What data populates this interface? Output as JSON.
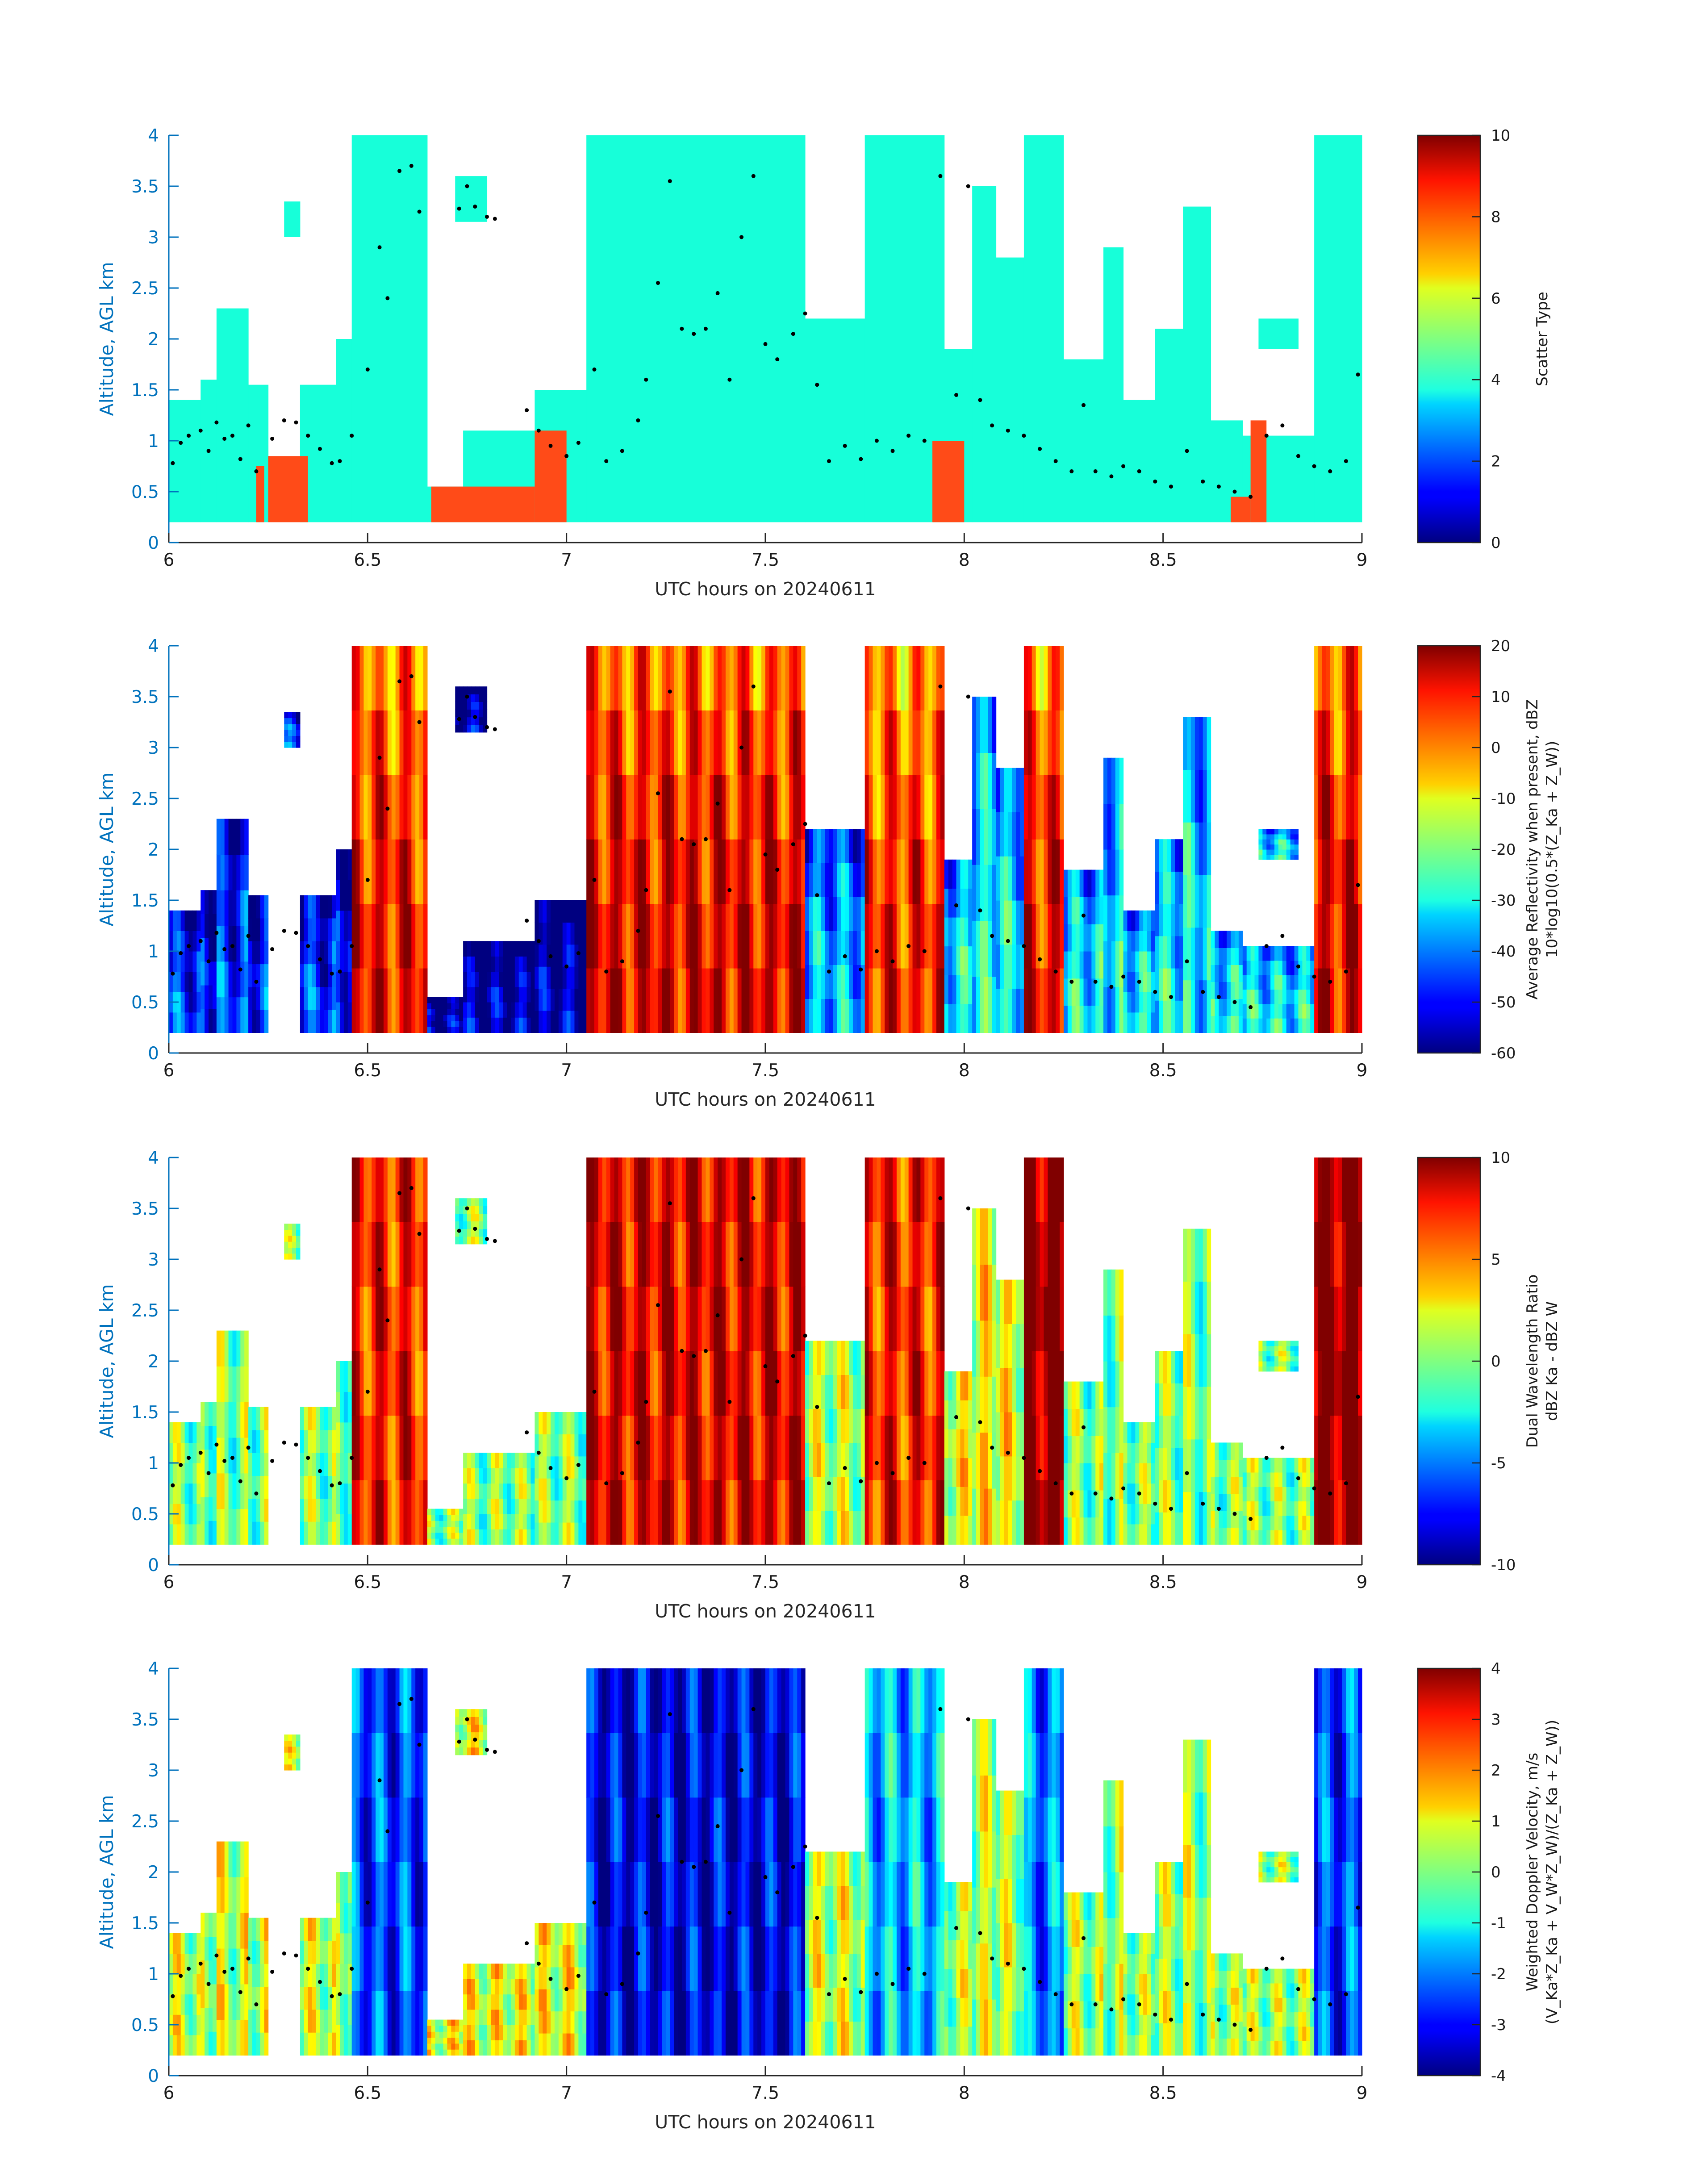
{
  "colors": {
    "ylabel": "#0072bd",
    "axis": "#262626",
    "marker": "#000000",
    "scatter_low": "#ff4b18",
    "scatter_high": "#17ffd9"
  },
  "chart_data": [
    {
      "type": "heatmap",
      "colormap": "jet",
      "xlabel": "UTC hours on 20240611",
      "ylabel": "Altitude, AGL km",
      "xlim": [
        6,
        9
      ],
      "ylim": [
        0,
        4
      ],
      "x_ticks": [
        "6",
        "6.5",
        "7",
        "7.5",
        "8",
        "8.5",
        "9"
      ],
      "y_ticks": [
        "0",
        "0.5",
        "1",
        "1.5",
        "2",
        "2.5",
        "3",
        "3.5",
        "4"
      ],
      "colorbar": {
        "label": [
          "Scatter Type"
        ],
        "range": [
          0,
          10
        ],
        "ticks": [
          "0",
          "2",
          "4",
          "6",
          "8",
          "10"
        ]
      },
      "field": "scatter_type"
    },
    {
      "type": "heatmap",
      "colormap": "jet",
      "xlabel": "UTC hours on 20240611",
      "ylabel": "Altitude, AGL km",
      "xlim": [
        6,
        9
      ],
      "ylim": [
        0,
        4
      ],
      "x_ticks": [
        "6",
        "6.5",
        "7",
        "7.5",
        "8",
        "8.5",
        "9"
      ],
      "y_ticks": [
        "0",
        "0.5",
        "1",
        "1.5",
        "2",
        "2.5",
        "3",
        "3.5",
        "4"
      ],
      "colorbar": {
        "label": [
          "Average Reflectivity when present, dBZ",
          "10*log10(0.5*(Z_Ka + Z_W))"
        ],
        "range": [
          -60,
          20
        ],
        "ticks": [
          "-60",
          "-50",
          "-40",
          "-30",
          "-20",
          "-10",
          "0",
          "10",
          "20"
        ]
      },
      "field": "reflectivity"
    },
    {
      "type": "heatmap",
      "colormap": "jet",
      "xlabel": "UTC hours on 20240611",
      "ylabel": "Altitude, AGL km",
      "xlim": [
        6,
        9
      ],
      "ylim": [
        0,
        4
      ],
      "x_ticks": [
        "6",
        "6.5",
        "7",
        "7.5",
        "8",
        "8.5",
        "9"
      ],
      "y_ticks": [
        "0",
        "0.5",
        "1",
        "1.5",
        "2",
        "2.5",
        "3",
        "3.5",
        "4"
      ],
      "colorbar": {
        "label": [
          "Dual Wavelength Ratio",
          "dBZ Ka - dBZ W"
        ],
        "range": [
          -10,
          10
        ],
        "ticks": [
          "-10",
          "-5",
          "0",
          "5",
          "10"
        ]
      },
      "field": "dwr"
    },
    {
      "type": "heatmap",
      "colormap": "jet",
      "xlabel": "UTC hours on 20240611",
      "ylabel": "Altitude, AGL km",
      "xlim": [
        6,
        9
      ],
      "ylim": [
        0,
        4
      ],
      "x_ticks": [
        "6",
        "6.5",
        "7",
        "7.5",
        "8",
        "8.5",
        "9"
      ],
      "y_ticks": [
        "0",
        "0.5",
        "1",
        "1.5",
        "2",
        "2.5",
        "3",
        "3.5",
        "4"
      ],
      "colorbar": {
        "label": [
          "Weighted Doppler Velocity, m/s",
          "(V_Ka*Z_Ka + V_W*Z_W)/(Z_Ka + Z_W))"
        ],
        "range": [
          -4,
          4
        ],
        "ticks": [
          "-4",
          "-3",
          "-2",
          "-1",
          "0",
          "1",
          "2",
          "3",
          "4"
        ]
      },
      "field": "doppler_velocity"
    }
  ],
  "cloud_columns": {
    "description_units": "x in UTC hours, altitudes in km AGL",
    "base_km": 0.2,
    "segments": [
      [
        6.0,
        6.08,
        0.2,
        1.4
      ],
      [
        6.08,
        6.12,
        0.2,
        1.6
      ],
      [
        6.12,
        6.2,
        0.2,
        2.3
      ],
      [
        6.2,
        6.25,
        0.2,
        1.55
      ],
      [
        6.29,
        6.33,
        3.0,
        3.35
      ],
      [
        6.33,
        6.42,
        0.2,
        1.55
      ],
      [
        6.42,
        6.46,
        0.2,
        2.0
      ],
      [
        6.46,
        6.65,
        0.2,
        4.0
      ],
      [
        6.65,
        6.74,
        0.2,
        0.55
      ],
      [
        6.72,
        6.8,
        3.15,
        3.6
      ],
      [
        6.74,
        6.92,
        0.2,
        1.1
      ],
      [
        6.92,
        7.05,
        0.2,
        1.5
      ],
      [
        7.05,
        7.6,
        0.2,
        4.0
      ],
      [
        7.6,
        7.75,
        0.2,
        2.2
      ],
      [
        7.75,
        7.95,
        0.2,
        4.0
      ],
      [
        7.95,
        8.02,
        0.2,
        1.9
      ],
      [
        8.02,
        8.08,
        0.2,
        3.5
      ],
      [
        8.08,
        8.15,
        0.2,
        2.8
      ],
      [
        8.15,
        8.25,
        0.2,
        4.0
      ],
      [
        8.25,
        8.35,
        0.2,
        1.8
      ],
      [
        8.35,
        8.4,
        0.2,
        2.9
      ],
      [
        8.4,
        8.48,
        0.2,
        1.4
      ],
      [
        8.48,
        8.55,
        0.2,
        2.1
      ],
      [
        8.55,
        8.62,
        0.2,
        3.3
      ],
      [
        8.62,
        8.7,
        0.2,
        1.2
      ],
      [
        8.74,
        8.84,
        1.9,
        2.2
      ],
      [
        8.7,
        8.88,
        0.2,
        1.05
      ],
      [
        8.88,
        9.0,
        0.2,
        4.0
      ]
    ],
    "low_scatter_regions": [
      [
        6.22,
        6.24,
        0.2,
        0.75
      ],
      [
        6.25,
        6.35,
        0.2,
        0.85
      ],
      [
        6.66,
        6.92,
        0.2,
        0.55
      ],
      [
        6.92,
        7.0,
        0.2,
        1.1
      ],
      [
        7.92,
        8.0,
        0.2,
        1.0
      ],
      [
        8.67,
        8.72,
        0.2,
        0.45
      ],
      [
        8.72,
        8.76,
        0.2,
        1.2
      ]
    ],
    "reflectivity_dbz": [
      [
        6.0,
        6.46,
        -45
      ],
      [
        6.46,
        6.65,
        10
      ],
      [
        6.65,
        7.05,
        -55
      ],
      [
        7.05,
        7.6,
        12
      ],
      [
        7.6,
        7.75,
        -35
      ],
      [
        7.75,
        7.95,
        8
      ],
      [
        7.95,
        8.15,
        -30
      ],
      [
        8.15,
        8.25,
        10
      ],
      [
        8.25,
        8.88,
        -30
      ],
      [
        8.88,
        9.0,
        12
      ]
    ],
    "dwr_db": [
      [
        6.0,
        6.46,
        0
      ],
      [
        6.46,
        6.65,
        7
      ],
      [
        6.65,
        7.05,
        0
      ],
      [
        7.05,
        7.6,
        8
      ],
      [
        7.6,
        7.75,
        1
      ],
      [
        7.75,
        7.95,
        7
      ],
      [
        7.95,
        8.15,
        2
      ],
      [
        8.15,
        8.25,
        10
      ],
      [
        8.25,
        8.88,
        0
      ],
      [
        8.88,
        9.0,
        10
      ]
    ],
    "velocity_ms": [
      [
        6.0,
        6.46,
        0.5
      ],
      [
        6.46,
        6.65,
        -2.5
      ],
      [
        6.65,
        7.05,
        0.8
      ],
      [
        7.05,
        7.6,
        -3.2
      ],
      [
        7.6,
        7.75,
        0.5
      ],
      [
        7.75,
        7.95,
        -1.5
      ],
      [
        7.95,
        8.15,
        0.3
      ],
      [
        8.15,
        8.25,
        -2.0
      ],
      [
        8.25,
        8.88,
        0.2
      ],
      [
        8.88,
        9.0,
        -2.5
      ]
    ]
  },
  "cloud_top_markers": {
    "x": [
      6.01,
      6.03,
      6.05,
      6.08,
      6.1,
      6.12,
      6.14,
      6.16,
      6.18,
      6.2,
      6.22,
      6.26,
      6.29,
      6.32,
      6.35,
      6.38,
      6.41,
      6.43,
      6.46,
      6.5,
      6.53,
      6.55,
      6.58,
      6.61,
      6.63,
      6.73,
      6.75,
      6.77,
      6.8,
      6.82,
      6.9,
      6.93,
      6.96,
      7.0,
      7.03,
      7.07,
      7.1,
      7.14,
      7.18,
      7.2,
      7.23,
      7.26,
      7.29,
      7.32,
      7.35,
      7.38,
      7.41,
      7.44,
      7.47,
      7.5,
      7.53,
      7.57,
      7.6,
      7.63,
      7.66,
      7.7,
      7.74,
      7.78,
      7.82,
      7.86,
      7.9,
      7.94,
      7.98,
      8.01,
      8.04,
      8.07,
      8.11,
      8.15,
      8.19,
      8.23,
      8.27,
      8.3,
      8.33,
      8.37,
      8.4,
      8.44,
      8.48,
      8.52,
      8.56,
      8.6,
      8.64,
      8.68,
      8.72,
      8.76,
      8.8,
      8.84,
      8.88,
      8.92,
      8.96,
      8.99
    ],
    "y": [
      0.78,
      0.98,
      1.05,
      1.1,
      0.9,
      1.18,
      1.02,
      1.05,
      0.82,
      1.15,
      0.7,
      1.02,
      1.2,
      1.18,
      1.05,
      0.92,
      0.78,
      0.8,
      1.05,
      1.7,
      2.9,
      2.4,
      3.65,
      3.7,
      3.25,
      3.28,
      3.5,
      3.3,
      3.2,
      3.18,
      1.3,
      1.1,
      0.95,
      0.85,
      0.98,
      1.7,
      0.8,
      0.9,
      1.2,
      1.6,
      2.55,
      3.55,
      2.1,
      2.05,
      2.1,
      2.45,
      1.6,
      3.0,
      3.6,
      1.95,
      1.8,
      2.05,
      2.25,
      1.55,
      0.8,
      0.95,
      0.82,
      1.0,
      0.9,
      1.05,
      1.0,
      3.6,
      1.45,
      3.5,
      1.4,
      1.15,
      1.1,
      1.05,
      0.92,
      0.8,
      0.7,
      1.35,
      0.7,
      0.65,
      0.75,
      0.7,
      0.6,
      0.55,
      0.9,
      0.6,
      0.55,
      0.5,
      0.45,
      1.05,
      1.15,
      0.85,
      0.75,
      0.7,
      0.8,
      1.65
    ]
  }
}
